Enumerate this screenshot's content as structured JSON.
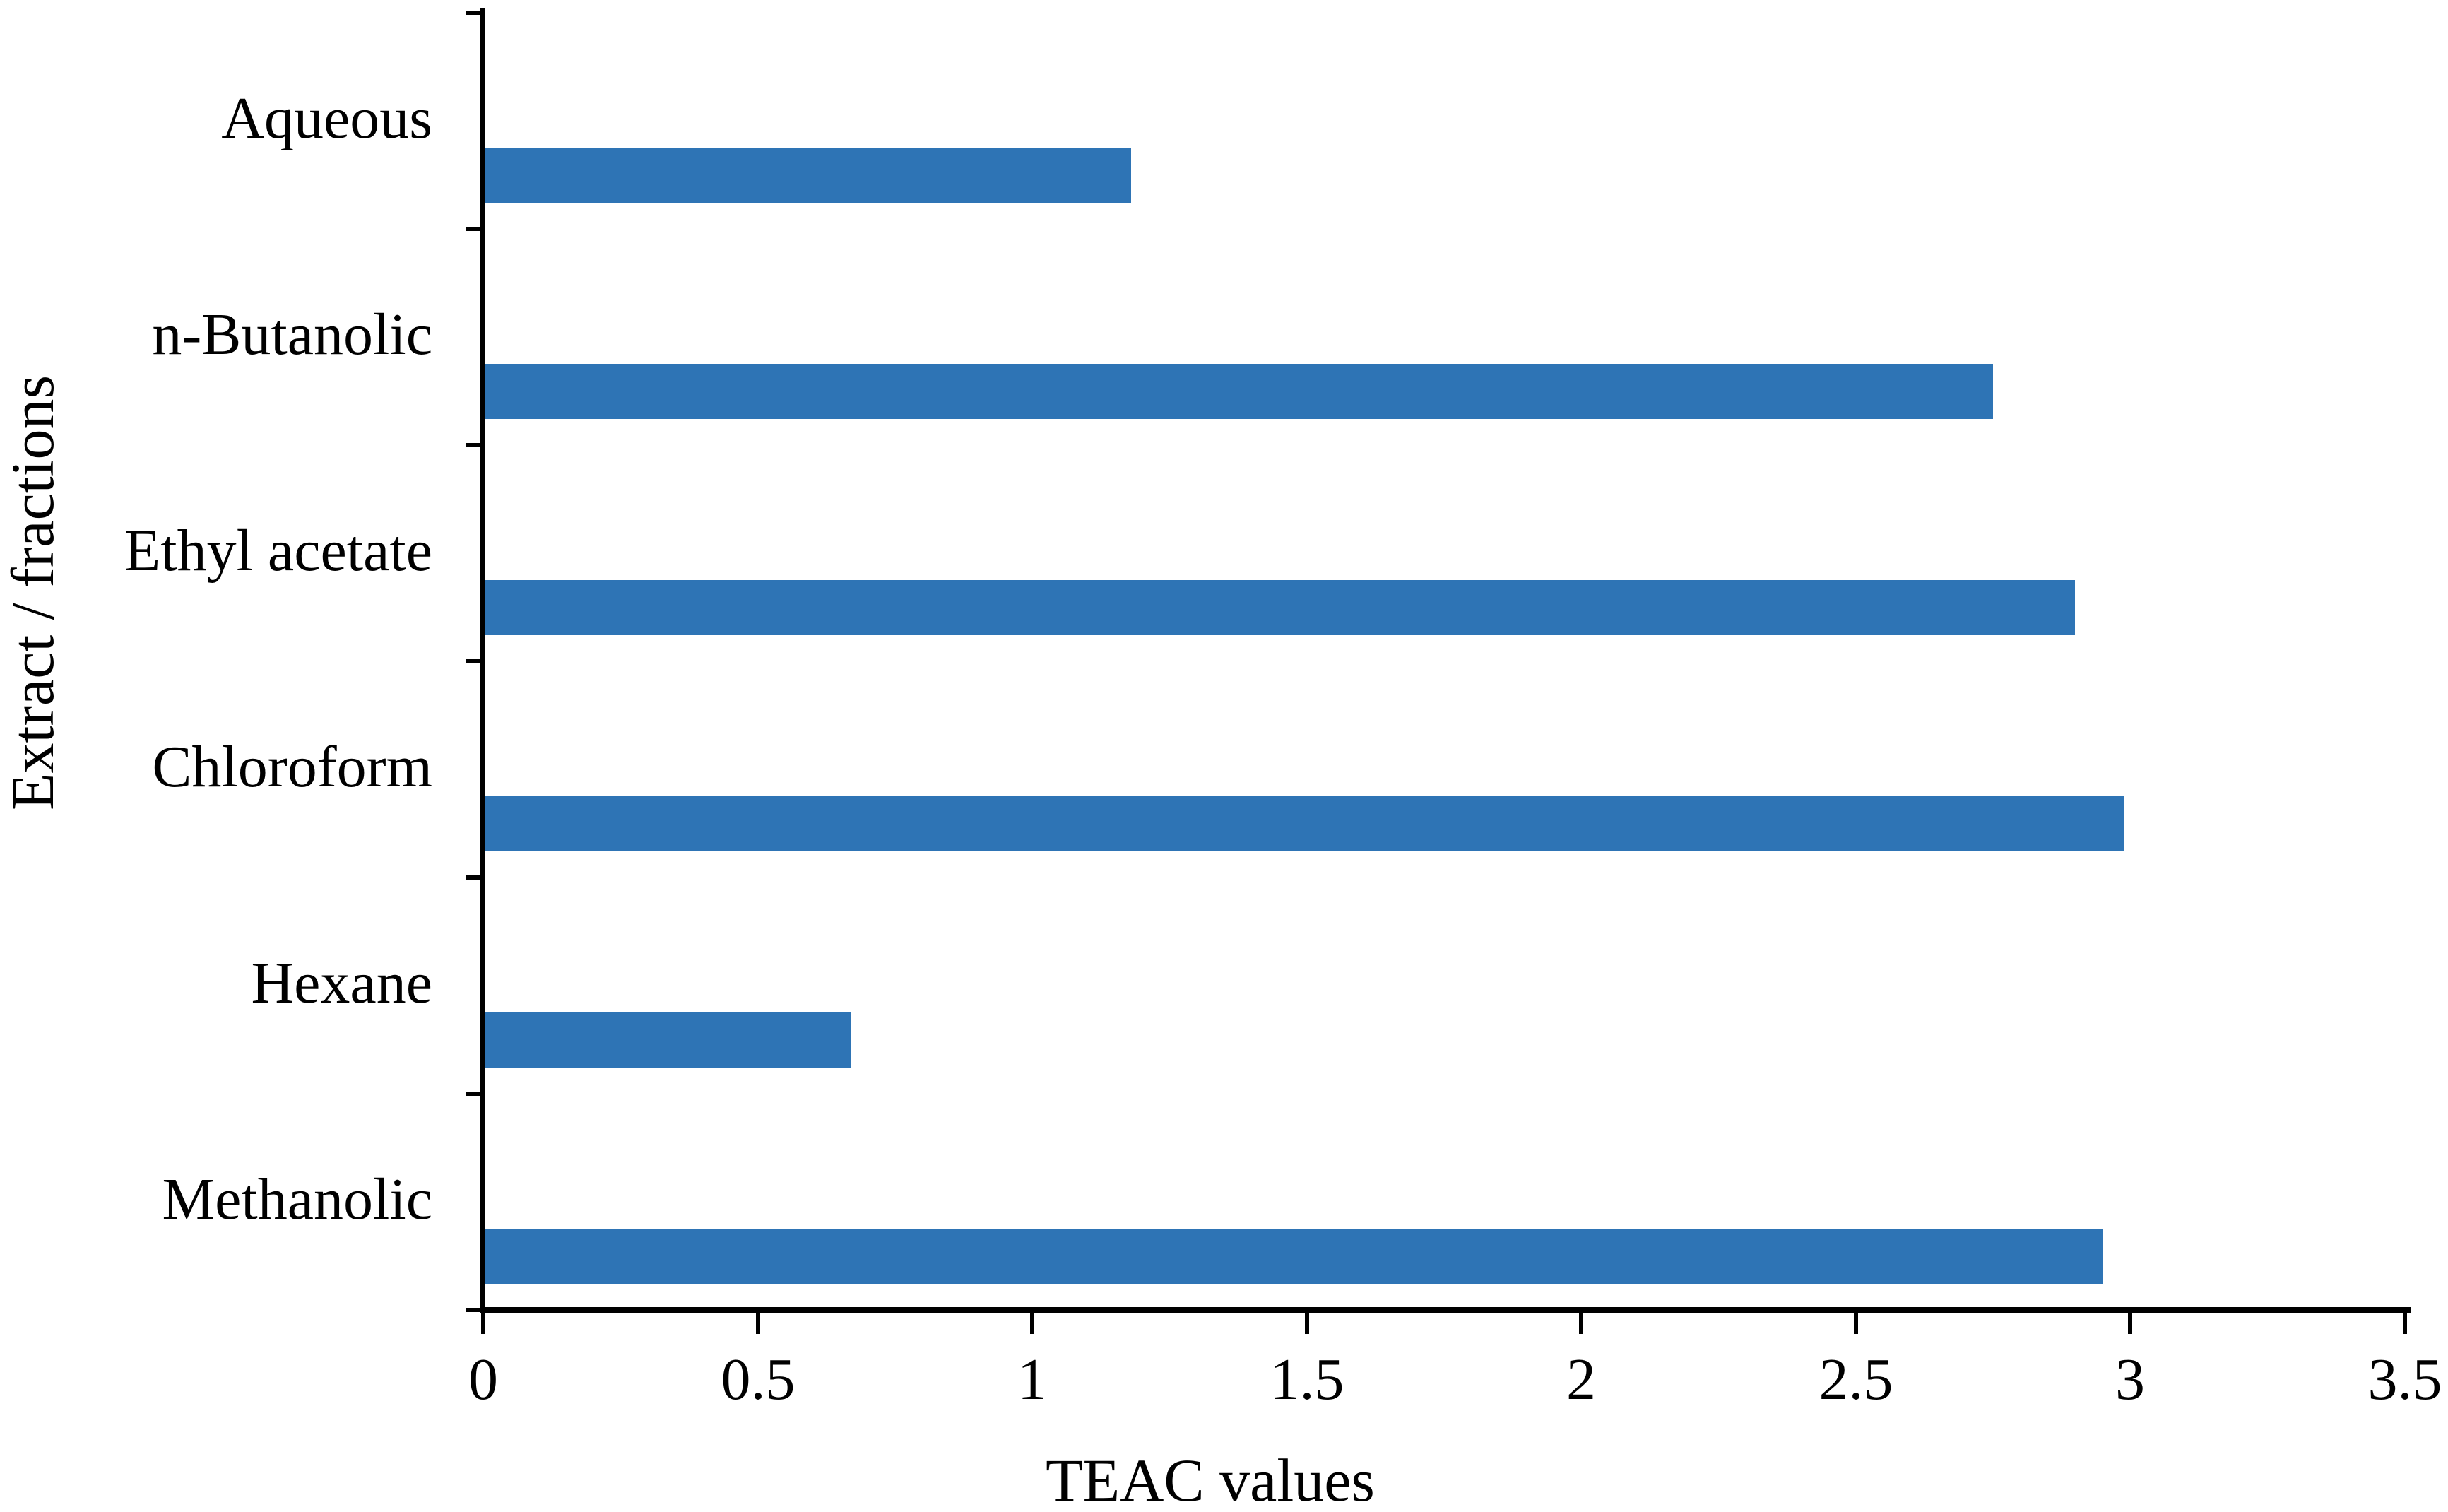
{
  "chart_data": {
    "type": "bar",
    "orientation": "horizontal",
    "title": "",
    "xlabel": "TEAC values",
    "ylabel": "Extract / fractions",
    "categories": [
      "Aqueous",
      "n-Butanolic",
      "Ethyl acetate",
      "Chloroform",
      "Hexane",
      "Methanolic"
    ],
    "values": [
      1.18,
      2.75,
      2.9,
      2.99,
      0.67,
      2.95
    ],
    "xlim": [
      0,
      3.5
    ],
    "xticks": [
      0,
      0.5,
      1,
      1.5,
      2,
      2.5,
      3,
      3.5
    ],
    "xtick_labels": [
      "0",
      "0.5",
      "1",
      "1.5",
      "2",
      "2.5",
      "3",
      "3.5"
    ],
    "grid": false,
    "legend": false,
    "bar_color": "#2E74B5",
    "axis_color": "#000000",
    "background_color": "#FFFFFF"
  }
}
